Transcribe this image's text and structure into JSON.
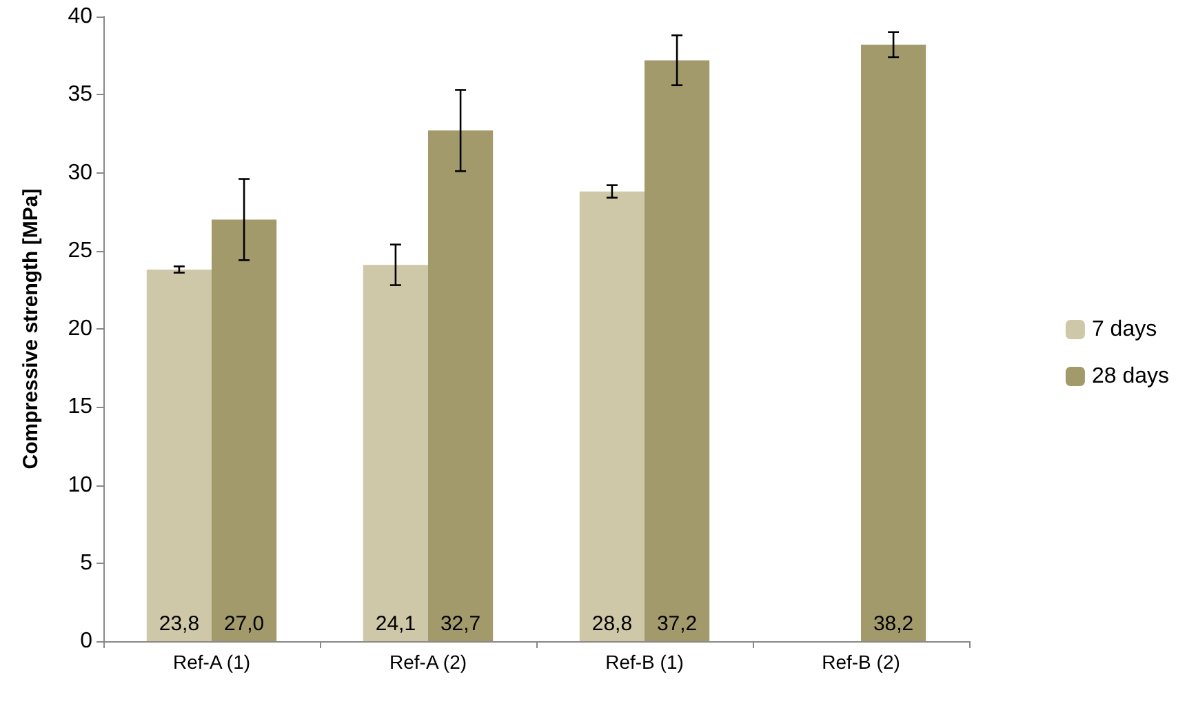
{
  "chart_data": {
    "type": "bar",
    "ylabel": "Compressive strength [MPa]",
    "categories": [
      "Ref-A (1)",
      "Ref-A (2)",
      "Ref-B (1)",
      "Ref-B (2)"
    ],
    "series": [
      {
        "name": "7 days",
        "color": "#cfc8a8",
        "values": [
          23.8,
          24.1,
          28.8,
          null
        ],
        "errors": [
          0.2,
          1.3,
          0.4,
          null
        ],
        "value_labels": [
          "23,8",
          "24,1",
          "28,8",
          null
        ]
      },
      {
        "name": "28 days",
        "color": "#a39a6c",
        "values": [
          27.0,
          32.7,
          37.2,
          38.2
        ],
        "errors": [
          2.6,
          2.6,
          1.6,
          0.8
        ],
        "value_labels": [
          "27,0",
          "32,7",
          "37,2",
          "38,2"
        ]
      }
    ],
    "ylim": [
      0,
      40
    ],
    "yticks": [
      0,
      5,
      10,
      15,
      20,
      25,
      30,
      35,
      40
    ],
    "grid": false,
    "legend": "right"
  }
}
